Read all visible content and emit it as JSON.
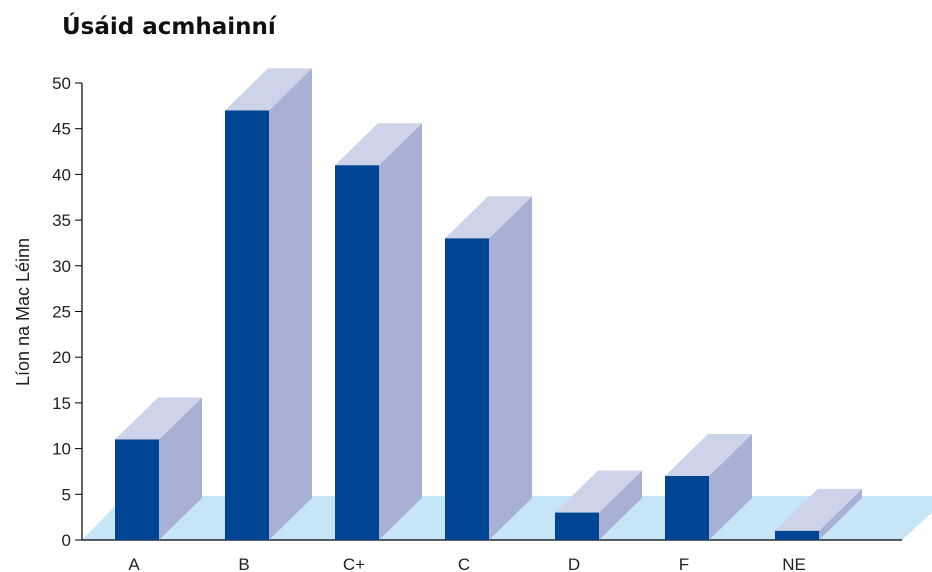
{
  "chart_data": {
    "type": "bar",
    "title": "Úsáid acmhainní",
    "xlabel": "",
    "ylabel": "Líon na Mac Léinn",
    "categories": [
      "A",
      "B",
      "C+",
      "C",
      "D",
      "F",
      "NE"
    ],
    "values": [
      11,
      47,
      41,
      33,
      3,
      7,
      1
    ],
    "ylim": [
      0,
      50
    ],
    "yticks": [
      0,
      5,
      10,
      15,
      20,
      25,
      30,
      35,
      40,
      45,
      50
    ],
    "grid": false,
    "legend": "none",
    "style": "3d",
    "colors": {
      "bar_front": "#004494",
      "bar_side": "#a8b0d5",
      "bar_top": "#cdd3e8",
      "floor": "#c6e6f7",
      "axis": "#000000"
    }
  }
}
